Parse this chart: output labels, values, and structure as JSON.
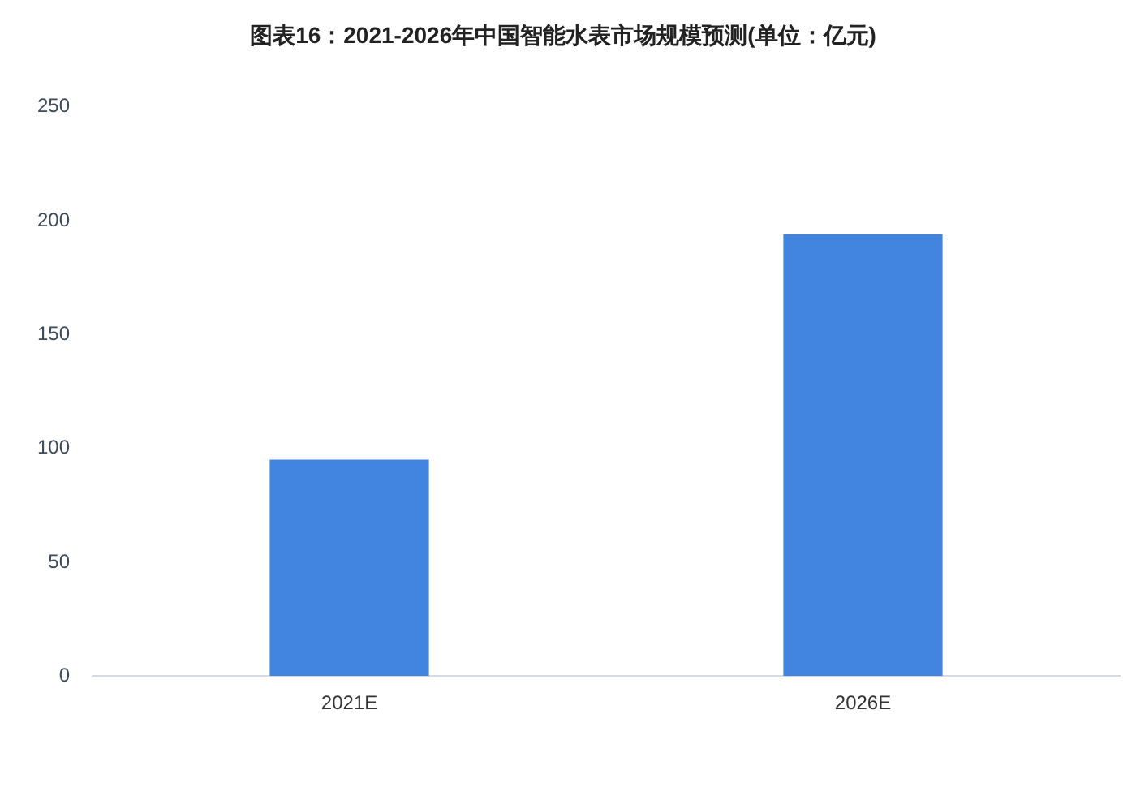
{
  "chart_data": {
    "type": "bar",
    "title": "图表16：2021-2026年中国智能水表市场规模预测(单位：亿元)",
    "categories": [
      "2021E",
      "2026E"
    ],
    "values": [
      95,
      194
    ],
    "color": "#4285e0",
    "ylim": [
      0,
      250
    ],
    "yticks": [
      0,
      50,
      100,
      150,
      200,
      250
    ],
    "grid": false,
    "legend": false
  }
}
